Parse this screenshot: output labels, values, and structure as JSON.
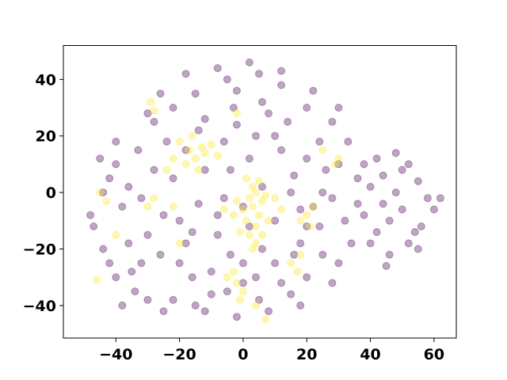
{
  "chart_data": {
    "type": "scatter",
    "title": "",
    "xlabel": "",
    "ylabel": "",
    "xlim": [
      -56.5,
      67
    ],
    "ylim": [
      -51.5,
      52
    ],
    "xticks": [
      -40,
      -20,
      0,
      20,
      40,
      60
    ],
    "yticks": [
      -40,
      -20,
      0,
      20,
      40
    ],
    "xtick_labels": [
      "−40",
      "−20",
      "0",
      "20",
      "40",
      "60"
    ],
    "ytick_labels": [
      "−40",
      "−20",
      "0",
      "20",
      "40"
    ],
    "grid": false,
    "legend": "none",
    "marker_alpha": 0.35,
    "series": [
      {
        "class": 0,
        "color": "#440154",
        "points": [
          [
            -45,
            12
          ],
          [
            -40,
            18
          ],
          [
            -42,
            5
          ],
          [
            -38,
            -5
          ],
          [
            -47,
            -12
          ],
          [
            -44,
            -20
          ],
          [
            -35,
            -28
          ],
          [
            -30,
            -38
          ],
          [
            -25,
            -42
          ],
          [
            -15,
            -40
          ],
          [
            -5,
            -35
          ],
          [
            5,
            -38
          ],
          [
            15,
            -36
          ],
          [
            20,
            -30
          ],
          [
            25,
            -22
          ],
          [
            30,
            -25
          ],
          [
            32,
            -10
          ],
          [
            25,
            0
          ],
          [
            30,
            10
          ],
          [
            28,
            25
          ],
          [
            20,
            30
          ],
          [
            12,
            38
          ],
          [
            5,
            42
          ],
          [
            -5,
            40
          ],
          [
            -15,
            35
          ],
          [
            -22,
            30
          ],
          [
            -28,
            25
          ],
          [
            -33,
            15
          ],
          [
            -36,
            2
          ],
          [
            -30,
            -15
          ],
          [
            -20,
            -25
          ],
          [
            -10,
            -28
          ],
          [
            0,
            -25
          ],
          [
            10,
            -25
          ],
          [
            18,
            -18
          ],
          [
            22,
            -5
          ],
          [
            20,
            12
          ],
          [
            14,
            25
          ],
          [
            6,
            32
          ],
          [
            -3,
            30
          ],
          [
            -12,
            26
          ],
          [
            -18,
            15
          ],
          [
            -22,
            5
          ],
          [
            -25,
            -8
          ],
          [
            -18,
            -18
          ],
          [
            -8,
            -15
          ],
          [
            2,
            -12
          ],
          [
            10,
            -10
          ],
          [
            15,
            0
          ],
          [
            12,
            15
          ],
          [
            4,
            20
          ],
          [
            -6,
            18
          ],
          [
            -12,
            8
          ],
          [
            -14,
            -4
          ],
          [
            -8,
            -8
          ],
          [
            0,
            -5
          ],
          [
            6,
            2
          ],
          [
            2,
            12
          ],
          [
            -4,
            8
          ],
          [
            -40,
            -30
          ],
          [
            -34,
            -35
          ],
          [
            -44,
            0
          ],
          [
            -48,
            -8
          ],
          [
            -26,
            35
          ],
          [
            -18,
            42
          ],
          [
            -8,
            44
          ],
          [
            2,
            46
          ],
          [
            12,
            43
          ],
          [
            22,
            36
          ],
          [
            30,
            30
          ],
          [
            33,
            18
          ],
          [
            36,
            5
          ],
          [
            34,
            -18
          ],
          [
            28,
            -32
          ],
          [
            18,
            -40
          ],
          [
            8,
            -42
          ],
          [
            -2,
            -44
          ],
          [
            -12,
            -42
          ],
          [
            -22,
            -38
          ],
          [
            42,
            12
          ],
          [
            48,
            14
          ],
          [
            52,
            10
          ],
          [
            55,
            4
          ],
          [
            58,
            -2
          ],
          [
            60,
            -6
          ],
          [
            56,
            -12
          ],
          [
            52,
            -18
          ],
          [
            46,
            -22
          ],
          [
            40,
            -18
          ],
          [
            38,
            -8
          ],
          [
            40,
            2
          ],
          [
            44,
            6
          ],
          [
            48,
            0
          ],
          [
            50,
            -6
          ],
          [
            46,
            -10
          ],
          [
            44,
            -4
          ],
          [
            54,
            -14
          ],
          [
            36,
            -4
          ],
          [
            42,
            -14
          ],
          [
            50,
            8
          ],
          [
            45,
            -26
          ],
          [
            62,
            -2
          ],
          [
            55,
            -20
          ],
          [
            38,
            10
          ],
          [
            -42,
            -25
          ],
          [
            -36,
            -18
          ],
          [
            -32,
            -2
          ],
          [
            -28,
            8
          ],
          [
            -24,
            18
          ],
          [
            -10,
            -36
          ],
          [
            0,
            -32
          ],
          [
            12,
            -32
          ],
          [
            24,
            -12
          ],
          [
            26,
            8
          ],
          [
            18,
            -6
          ],
          [
            -16,
            -30
          ],
          [
            -30,
            28
          ],
          [
            -38,
            -40
          ],
          [
            6,
            -20
          ],
          [
            -4,
            -22
          ],
          [
            16,
            6
          ],
          [
            8,
            28
          ],
          [
            -2,
            36
          ],
          [
            -20,
            -10
          ],
          [
            -26,
            -22
          ],
          [
            16,
            -22
          ],
          [
            -14,
            22
          ],
          [
            4,
            -30
          ],
          [
            -32,
            -25
          ],
          [
            28,
            -2
          ],
          [
            -6,
            -2
          ],
          [
            10,
            20
          ],
          [
            -16,
            -14
          ],
          [
            24,
            18
          ],
          [
            -40,
            10
          ],
          [
            -2,
            24
          ],
          [
            20,
            -12
          ]
        ]
      },
      {
        "class": 1,
        "color": "#fde725",
        "points": [
          [
            2,
            -2
          ],
          [
            4,
            0
          ],
          [
            3,
            -5
          ],
          [
            5,
            -8
          ],
          [
            1,
            -10
          ],
          [
            6,
            -3
          ],
          [
            4,
            -12
          ],
          [
            0,
            -6
          ],
          [
            -2,
            -3
          ],
          [
            3,
            2
          ],
          [
            5,
            4
          ],
          [
            7,
            -1
          ],
          [
            2,
            -15
          ],
          [
            6,
            -15
          ],
          [
            4,
            -18
          ],
          [
            -1,
            -14
          ],
          [
            8,
            -10
          ],
          [
            -3,
            -8
          ],
          [
            1,
            5
          ],
          [
            3,
            -20
          ],
          [
            -20,
            18
          ],
          [
            -17,
            15
          ],
          [
            -15,
            12
          ],
          [
            -13,
            16
          ],
          [
            -18,
            10
          ],
          [
            -22,
            12
          ],
          [
            -16,
            20
          ],
          [
            -14,
            8
          ],
          [
            -8,
            13
          ],
          [
            -10,
            17
          ],
          [
            -12,
            14
          ],
          [
            -5,
            -30
          ],
          [
            -2,
            -32
          ],
          [
            -3,
            -28
          ],
          [
            0,
            -35
          ],
          [
            -1,
            -38
          ],
          [
            20,
            -8
          ],
          [
            22,
            -5
          ],
          [
            18,
            -10
          ],
          [
            21,
            -12
          ],
          [
            15,
            -25
          ],
          [
            17,
            -28
          ],
          [
            18,
            -22
          ],
          [
            -30,
            -5
          ],
          [
            -28,
            -2
          ],
          [
            -45,
            0
          ],
          [
            -43,
            -3
          ],
          [
            -46,
            -31
          ],
          [
            -29,
            32
          ],
          [
            -28,
            29
          ],
          [
            -2,
            28
          ],
          [
            4,
            -40
          ],
          [
            7,
            -45
          ],
          [
            -40,
            -15
          ],
          [
            -20,
            -18
          ],
          [
            25,
            15
          ],
          [
            29,
            10
          ],
          [
            -24,
            8
          ],
          [
            10,
            -2
          ],
          [
            -6,
            -6
          ],
          [
            30,
            12
          ],
          [
            -22,
            -5
          ],
          [
            12,
            -6
          ]
        ]
      }
    ]
  }
}
